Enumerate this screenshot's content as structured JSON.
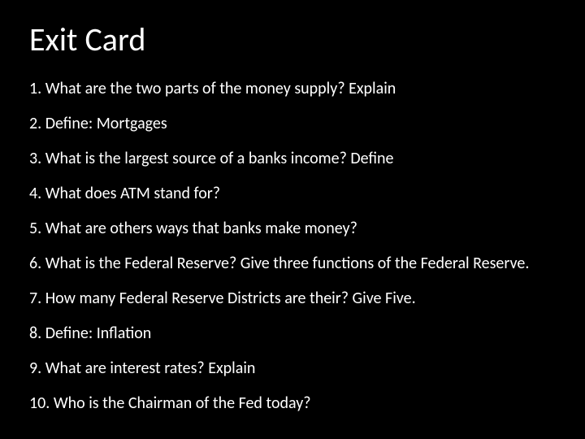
{
  "slide": {
    "title": "Exit Card",
    "background_color": "#000000",
    "text_color": "#ffffff",
    "title_fontsize": 40,
    "item_fontsize": 20,
    "font_family": "Calibri",
    "items": [
      "1.  What are the two parts of the money supply?  Explain",
      "2.  Define: Mortgages",
      "3.  What is the largest source of a banks income? Define",
      "4.  What does ATM stand for?",
      "5.  What are others ways that banks make money?",
      "6. What is the Federal Reserve? Give three functions of the Federal Reserve.",
      "7. How many Federal Reserve Districts are their? Give Five.",
      "8. Define: Inflation",
      "9. What are interest rates? Explain",
      "10.  Who is the Chairman of the Fed today?"
    ]
  }
}
